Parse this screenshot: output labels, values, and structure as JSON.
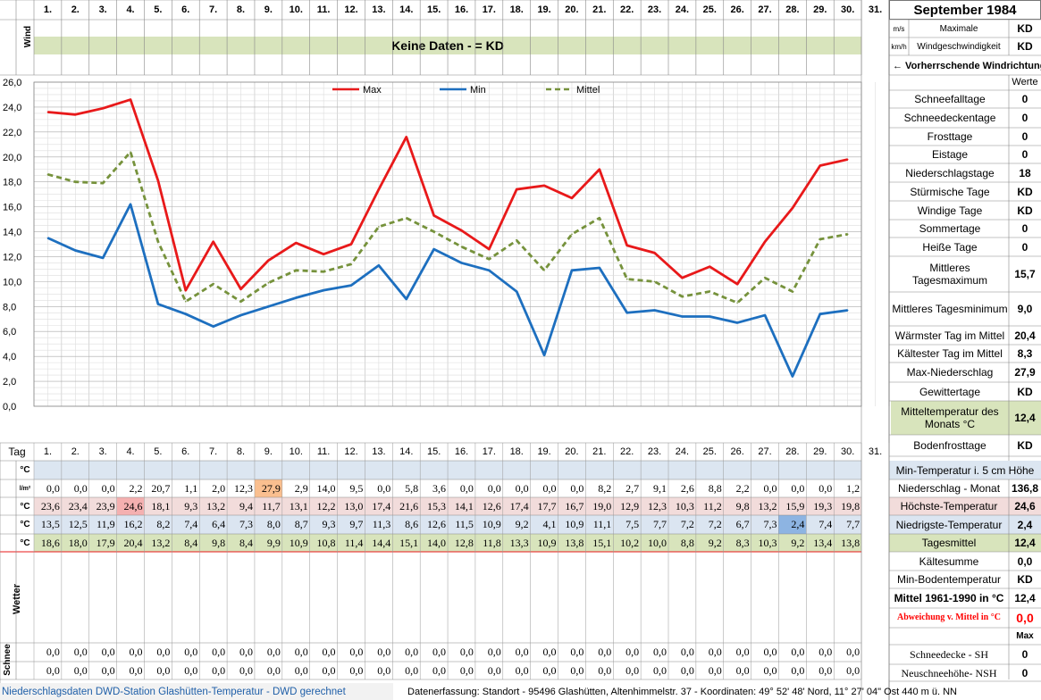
{
  "month_title": "September 1984",
  "wind": {
    "label": "Wind",
    "unit_ms": "m/s",
    "unit_kmh": "km/h",
    "max_label_1": "Maximale",
    "max_label_2": "Windgeschwindigkeit",
    "max_ms": "KD",
    "max_kmh": "KD",
    "no_data": "Keine Daten -  = KD",
    "prevailing": "← Vorherrschende Windrichtung"
  },
  "werte_header": "Werte",
  "day_row_label": "Tag",
  "days": [
    "1.",
    "2.",
    "3.",
    "4.",
    "5.",
    "6.",
    "7.",
    "8.",
    "9.",
    "10.",
    "11.",
    "12.",
    "13.",
    "14.",
    "15.",
    "16.",
    "17.",
    "18.",
    "19.",
    "20.",
    "21.",
    "22.",
    "23.",
    "24.",
    "25.",
    "26.",
    "27.",
    "28.",
    "29.",
    "30.",
    "31."
  ],
  "stats": [
    {
      "label": "Schneefalltage",
      "value": "0"
    },
    {
      "label": "Schneedeckentage",
      "value": "0"
    },
    {
      "label": "Frosttage",
      "value": "0"
    },
    {
      "label": "Eistage",
      "value": "0"
    },
    {
      "label": "Niederschlagstage",
      "value": "18"
    },
    {
      "label": "Stürmische Tage",
      "value": "KD"
    },
    {
      "label": "Windige Tage",
      "value": "KD"
    },
    {
      "label": "Sommertage",
      "value": "0"
    },
    {
      "label": "Heiße Tage",
      "value": "0"
    },
    {
      "label": "Mittleres Tagesmaximum",
      "value": "15,7"
    },
    {
      "label": "Mittleres Tagesminimum",
      "value": "9,0"
    },
    {
      "label": "Wärmster Tag im Mittel",
      "value": "20,4"
    },
    {
      "label": "Kältester Tag im Mittel",
      "value": "8,3"
    },
    {
      "label": "Max-Niederschlag",
      "value": "27,9"
    },
    {
      "label": "Gewittertage",
      "value": "KD"
    },
    {
      "label": "Mitteltemperatur des Monats °C",
      "value": "12,4"
    },
    {
      "label": "Bodenfrosttage",
      "value": "KD"
    }
  ],
  "lower_stats": [
    {
      "label": "Min-Temperatur i. 5 cm Höhe",
      "value": ""
    },
    {
      "label": "Niederschlag - Monat",
      "value": "136,8"
    },
    {
      "label": "Höchste-Temperatur",
      "value": "24,6"
    },
    {
      "label": "Niedrigste-Temperatur",
      "value": "2,4"
    },
    {
      "label": "Tagesmittel",
      "value": "12,4"
    },
    {
      "label": "Kältesumme",
      "value": "0,0"
    },
    {
      "label": "Min-Bodentemperatur",
      "value": "KD"
    },
    {
      "label": "Mittel 1961-1990 in °C",
      "value": "12,4"
    },
    {
      "label": "Abweichung v. Mittel in °C",
      "value": "0,0"
    },
    {
      "label": "",
      "value": "Max"
    },
    {
      "label": "Schneedecke -   SH",
      "value": "0"
    },
    {
      "label": "Neuschneehöhe- NSH",
      "value": "0"
    }
  ],
  "row_units": {
    "min5cm": "°C",
    "precip": "l/m²",
    "max": "°C",
    "min": "°C",
    "mean": "°C"
  },
  "wetter_label": "Wetter",
  "schnee_label": "Schnee",
  "precip_values": [
    "0,0",
    "0,0",
    "0,0",
    "2,2",
    "20,7",
    "1,1",
    "2,0",
    "12,3",
    "27,9",
    "2,9",
    "14,0",
    "9,5",
    "0,0",
    "5,8",
    "3,6",
    "0,0",
    "0,0",
    "0,0",
    "0,0",
    "0,0",
    "8,2",
    "2,7",
    "9,1",
    "2,6",
    "8,8",
    "2,2",
    "0,0",
    "0,0",
    "0,0",
    "1,2",
    ""
  ],
  "max_values": [
    "23,6",
    "23,4",
    "23,9",
    "24,6",
    "18,1",
    "9,3",
    "13,2",
    "9,4",
    "11,7",
    "13,1",
    "12,2",
    "13,0",
    "17,4",
    "21,6",
    "15,3",
    "14,1",
    "12,6",
    "17,4",
    "17,7",
    "16,7",
    "19,0",
    "12,9",
    "12,3",
    "10,3",
    "11,2",
    "9,8",
    "13,2",
    "15,9",
    "19,3",
    "19,8",
    ""
  ],
  "min_values": [
    "13,5",
    "12,5",
    "11,9",
    "16,2",
    "8,2",
    "7,4",
    "6,4",
    "7,3",
    "8,0",
    "8,7",
    "9,3",
    "9,7",
    "11,3",
    "8,6",
    "12,6",
    "11,5",
    "10,9",
    "9,2",
    "4,1",
    "10,9",
    "11,1",
    "7,5",
    "7,7",
    "7,2",
    "7,2",
    "6,7",
    "7,3",
    "2,4",
    "7,4",
    "7,7",
    ""
  ],
  "mean_values": [
    "18,6",
    "18,0",
    "17,9",
    "20,4",
    "13,2",
    "8,4",
    "9,8",
    "8,4",
    "9,9",
    "10,9",
    "10,8",
    "11,4",
    "14,4",
    "15,1",
    "14,0",
    "12,8",
    "11,8",
    "13,3",
    "10,9",
    "13,8",
    "15,1",
    "10,2",
    "10,0",
    "8,8",
    "9,2",
    "8,3",
    "10,3",
    "9,2",
    "13,4",
    "13,8",
    ""
  ],
  "snow_sh": [
    "0,0",
    "0,0",
    "0,0",
    "0,0",
    "0,0",
    "0,0",
    "0,0",
    "0,0",
    "0,0",
    "0,0",
    "0,0",
    "0,0",
    "0,0",
    "0,0",
    "0,0",
    "0,0",
    "0,0",
    "0,0",
    "0,0",
    "0,0",
    "0,0",
    "0,0",
    "0,0",
    "0,0",
    "0,0",
    "0,0",
    "0,0",
    "0,0",
    "0,0",
    "0,0",
    ""
  ],
  "snow_nsh": [
    "0,0",
    "0,0",
    "0,0",
    "0,0",
    "0,0",
    "0,0",
    "0,0",
    "0,0",
    "0,0",
    "0,0",
    "0,0",
    "0,0",
    "0,0",
    "0,0",
    "0,0",
    "0,0",
    "0,0",
    "0,0",
    "0,0",
    "0,0",
    "0,0",
    "0,0",
    "0,0",
    "0,0",
    "0,0",
    "0,0",
    "0,0",
    "0,0",
    "0,0",
    "0,0",
    ""
  ],
  "footer": {
    "left": "Niederschlagsdaten DWD-Station Glashütten-Temperatur -  DWD gerechnet",
    "right": "Datenerfassung: Standort -  95496  Glashütten, Altenhimmelstr. 37 - Koordinaten:  49° 52' 48' Nord,   11° 27' 04\" Ost   440 m ü. NN"
  },
  "colors": {
    "max": "#e8191a",
    "min": "#1d6fbf",
    "mean": "#76923c",
    "header_green": "#d8e4bc",
    "row_blue": "#dce6f1",
    "row_pink": "#f2dcdb",
    "row_min_blue": "#dbe5f1",
    "row_green": "#d8e4bc",
    "highlight_orange": "#fabf8f",
    "highlight_red": "#f2a3a3",
    "highlight_blue": "#8db4e2",
    "deviation_red": "#ff0000"
  },
  "chart_data": {
    "type": "line",
    "title": "",
    "xlabel": "",
    "ylabel": "",
    "x": [
      1,
      2,
      3,
      4,
      5,
      6,
      7,
      8,
      9,
      10,
      11,
      12,
      13,
      14,
      15,
      16,
      17,
      18,
      19,
      20,
      21,
      22,
      23,
      24,
      25,
      26,
      27,
      28,
      29,
      30
    ],
    "ylim": [
      0,
      26
    ],
    "y_ticks": [
      "0,0",
      "2,0",
      "4,0",
      "6,0",
      "8,0",
      "10,0",
      "12,0",
      "14,0",
      "16,0",
      "18,0",
      "20,0",
      "22,0",
      "24,0",
      "26,0"
    ],
    "grid": true,
    "legend_position": "top",
    "series": [
      {
        "name": "Max",
        "values": [
          23.6,
          23.4,
          23.9,
          24.6,
          18.1,
          9.3,
          13.2,
          9.4,
          11.7,
          13.1,
          12.2,
          13.0,
          17.4,
          21.6,
          15.3,
          14.1,
          12.6,
          17.4,
          17.7,
          16.7,
          19.0,
          12.9,
          12.3,
          10.3,
          11.2,
          9.8,
          13.2,
          15.9,
          19.3,
          19.8
        ]
      },
      {
        "name": "Min",
        "values": [
          13.5,
          12.5,
          11.9,
          16.2,
          8.2,
          7.4,
          6.4,
          7.3,
          8.0,
          8.7,
          9.3,
          9.7,
          11.3,
          8.6,
          12.6,
          11.5,
          10.9,
          9.2,
          4.1,
          10.9,
          11.1,
          7.5,
          7.7,
          7.2,
          7.2,
          6.7,
          7.3,
          2.4,
          7.4,
          7.7
        ]
      },
      {
        "name": "Mittel",
        "values": [
          18.6,
          18.0,
          17.9,
          20.4,
          13.2,
          8.4,
          9.8,
          8.4,
          9.9,
          10.9,
          10.8,
          11.4,
          14.4,
          15.1,
          14.0,
          12.8,
          11.8,
          13.3,
          10.9,
          13.8,
          15.1,
          10.2,
          10.0,
          8.8,
          9.2,
          8.3,
          10.3,
          9.2,
          13.4,
          13.8
        ]
      }
    ]
  }
}
